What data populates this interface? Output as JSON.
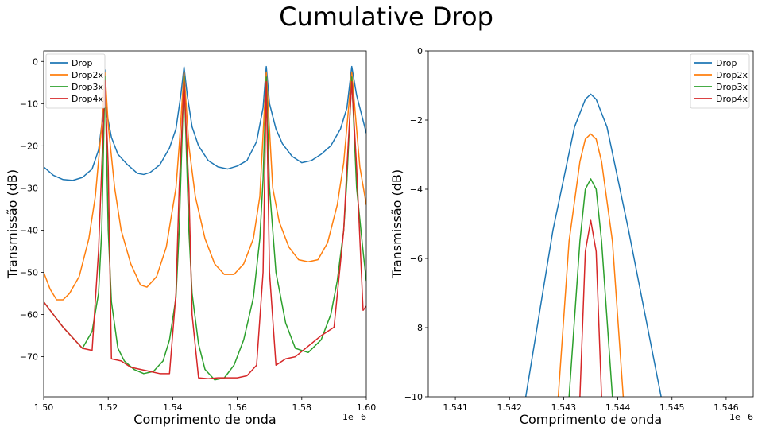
{
  "figure": {
    "title": "Cumulative Drop"
  },
  "colors": {
    "Drop": "#1f77b4",
    "Drop2x": "#ff7f0e",
    "Drop3x": "#2ca02c",
    "Drop4x": "#d62728"
  },
  "chart_data": [
    {
      "type": "line",
      "title": "",
      "xlabel": "Comprimento de onda",
      "ylabel": "Transmissão (dB)",
      "x_offset_label": "1e−6",
      "xlim": [
        1.5,
        1.6
      ],
      "ylim": [
        -79.5,
        2.5
      ],
      "xticks": [
        1.5,
        1.52,
        1.54,
        1.56,
        1.58,
        1.6
      ],
      "xtick_labels": [
        "1.50",
        "1.52",
        "1.54",
        "1.56",
        "1.58",
        "1.60"
      ],
      "yticks": [
        0,
        -10,
        -20,
        -30,
        -40,
        -50,
        -60,
        -70
      ],
      "ytick_labels": [
        "0",
        "−10",
        "−20",
        "−30",
        "−40",
        "−50",
        "−60",
        "−70"
      ],
      "grid": false,
      "legend_position": "top-left",
      "series": [
        {
          "name": "Drop",
          "x": [
            1.5,
            1.503,
            1.506,
            1.509,
            1.512,
            1.515,
            1.517,
            1.5185,
            1.519,
            1.5195,
            1.521,
            1.523,
            1.526,
            1.529,
            1.531,
            1.533,
            1.536,
            1.539,
            1.541,
            1.5425,
            1.5435,
            1.5445,
            1.546,
            1.548,
            1.551,
            1.554,
            1.557,
            1.56,
            1.563,
            1.566,
            1.568,
            1.569,
            1.57,
            1.572,
            1.574,
            1.577,
            1.58,
            1.583,
            1.586,
            1.589,
            1.592,
            1.594,
            1.5955,
            1.597,
            1.6
          ],
          "y": [
            -25,
            -27,
            -28,
            -28.2,
            -27.5,
            -25.5,
            -21,
            -12,
            -2,
            -12,
            -18,
            -22,
            -24.5,
            -26.5,
            -26.8,
            -26.3,
            -24.5,
            -20.5,
            -16,
            -8,
            -1.3,
            -8,
            -15.5,
            -20,
            -23.5,
            -25,
            -25.5,
            -24.8,
            -23.5,
            -19,
            -11,
            -1.2,
            -10,
            -16,
            -19.5,
            -22.5,
            -24,
            -23.5,
            -22,
            -20,
            -16,
            -11,
            -1.2,
            -8,
            -17
          ]
        },
        {
          "name": "Drop2x",
          "x": [
            1.5,
            1.502,
            1.504,
            1.506,
            1.508,
            1.511,
            1.514,
            1.516,
            1.518,
            1.519,
            1.52,
            1.522,
            1.524,
            1.527,
            1.53,
            1.532,
            1.535,
            1.538,
            1.541,
            1.542,
            1.5435,
            1.545,
            1.547,
            1.55,
            1.553,
            1.556,
            1.559,
            1.562,
            1.565,
            1.567,
            1.569,
            1.571,
            1.573,
            1.576,
            1.579,
            1.582,
            1.585,
            1.588,
            1.591,
            1.593,
            1.5955,
            1.598,
            1.6
          ],
          "y": [
            -50,
            -54,
            -56.5,
            -56.5,
            -55,
            -51,
            -42,
            -32,
            -15,
            -2.5,
            -15,
            -30,
            -40,
            -48,
            -53,
            -53.5,
            -51,
            -44,
            -30,
            -20,
            -2.5,
            -20,
            -32,
            -42,
            -48,
            -50.5,
            -50.5,
            -48,
            -42,
            -32,
            -2.5,
            -30,
            -38,
            -44,
            -47,
            -47.5,
            -47,
            -43,
            -34,
            -24,
            -2.5,
            -25,
            -34
          ]
        },
        {
          "name": "Drop3x",
          "x": [
            1.5,
            1.503,
            1.506,
            1.509,
            1.512,
            1.515,
            1.517,
            1.518,
            1.519,
            1.52,
            1.521,
            1.523,
            1.525,
            1.528,
            1.531,
            1.534,
            1.537,
            1.539,
            1.541,
            1.542,
            1.5435,
            1.545,
            1.546,
            1.548,
            1.55,
            1.553,
            1.556,
            1.559,
            1.562,
            1.565,
            1.567,
            1.568,
            1.569,
            1.57,
            1.572,
            1.575,
            1.578,
            1.582,
            1.586,
            1.589,
            1.591,
            1.593,
            1.594,
            1.5955,
            1.597,
            1.599,
            1.6
          ],
          "y": [
            -57,
            -60,
            -63,
            -65.5,
            -68,
            -64,
            -55,
            -40,
            -3.5,
            -40,
            -57,
            -68,
            -71,
            -73,
            -74,
            -73.5,
            -71,
            -66,
            -56,
            -40,
            -3.5,
            -40,
            -55,
            -67,
            -73,
            -75.5,
            -75,
            -72,
            -66,
            -56,
            -42,
            -28,
            -3.7,
            -30,
            -50,
            -62,
            -68,
            -69,
            -66,
            -60,
            -52,
            -40,
            -28,
            -3.7,
            -30,
            -45,
            -52
          ]
        },
        {
          "name": "Drop4x",
          "x": [
            1.5,
            1.503,
            1.506,
            1.509,
            1.512,
            1.515,
            1.517,
            1.518,
            1.519,
            1.52,
            1.521,
            1.524,
            1.527,
            1.53,
            1.533,
            1.536,
            1.539,
            1.541,
            1.542,
            1.5435,
            1.545,
            1.546,
            1.548,
            1.551,
            1.554,
            1.557,
            1.56,
            1.563,
            1.566,
            1.568,
            1.569,
            1.57,
            1.572,
            1.575,
            1.578,
            1.582,
            1.586,
            1.59,
            1.593,
            1.594,
            1.5955,
            1.597,
            1.599,
            1.6
          ],
          "y": [
            -57,
            -60,
            -63,
            -65.5,
            -68,
            -68.5,
            -45,
            -25,
            -4.5,
            -25,
            -70.5,
            -71,
            -72.5,
            -73,
            -73.5,
            -74,
            -74,
            -55,
            -30,
            -4.8,
            -30,
            -60,
            -75,
            -75.2,
            -75,
            -75,
            -75,
            -74.5,
            -72,
            -50,
            -4.8,
            -50,
            -72,
            -70.5,
            -70,
            -67.5,
            -65,
            -63,
            -40,
            -25,
            -4.8,
            -25,
            -59,
            -58
          ]
        }
      ]
    },
    {
      "type": "line",
      "title": "",
      "xlabel": "Comprimento de onda",
      "ylabel": "Transmissão (dB)",
      "x_offset_label": "1e−6",
      "xlim": [
        1.5405,
        1.5465
      ],
      "ylim": [
        -10,
        0
      ],
      "xticks": [
        1.541,
        1.542,
        1.543,
        1.544,
        1.545,
        1.546
      ],
      "xtick_labels": [
        "1.541",
        "1.542",
        "1.543",
        "1.544",
        "1.545",
        "1.546"
      ],
      "yticks": [
        0,
        -2,
        -4,
        -6,
        -8,
        -10
      ],
      "ytick_labels": [
        "0",
        "−2",
        "−4",
        "−6",
        "−8",
        "−10"
      ],
      "grid": false,
      "legend_position": "top-right",
      "series": [
        {
          "name": "Drop",
          "x": [
            1.5423,
            1.5428,
            1.5432,
            1.5434,
            1.5435,
            1.5436,
            1.5438,
            1.5442,
            1.5448
          ],
          "y": [
            -10,
            -5.2,
            -2.2,
            -1.4,
            -1.25,
            -1.4,
            -2.2,
            -5.2,
            -10
          ]
        },
        {
          "name": "Drop2x",
          "x": [
            1.5429,
            1.5431,
            1.5433,
            1.5434,
            1.5435,
            1.5436,
            1.5437,
            1.5439,
            1.5441
          ],
          "y": [
            -10,
            -5.5,
            -3.2,
            -2.55,
            -2.4,
            -2.55,
            -3.2,
            -5.5,
            -10
          ]
        },
        {
          "name": "Drop3x",
          "x": [
            1.5431,
            1.5433,
            1.5434,
            1.5435,
            1.5436,
            1.5437,
            1.5439
          ],
          "y": [
            -10,
            -5.5,
            -4.0,
            -3.7,
            -4.0,
            -5.5,
            -10
          ]
        },
        {
          "name": "Drop4x",
          "x": [
            1.5433,
            1.5434,
            1.5435,
            1.5436,
            1.5437
          ],
          "y": [
            -10,
            -5.8,
            -4.9,
            -5.8,
            -10
          ]
        }
      ]
    }
  ]
}
